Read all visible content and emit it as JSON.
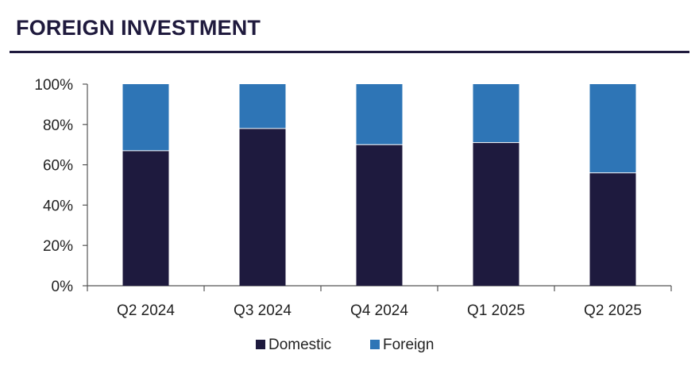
{
  "title": "FOREIGN INVESTMENT",
  "chart_data": {
    "type": "bar",
    "stacked": true,
    "categories": [
      "Q2 2024",
      "Q3 2024",
      "Q4 2024",
      "Q1 2025",
      "Q2 2025"
    ],
    "series": [
      {
        "name": "Domestic",
        "values": [
          67,
          78,
          70,
          71,
          56
        ],
        "color": "#1e1a3e"
      },
      {
        "name": "Foreign",
        "values": [
          33,
          22,
          30,
          29,
          44
        ],
        "color": "#2e75b6"
      }
    ],
    "ylim": [
      0,
      100
    ],
    "yticks": [
      "0%",
      "20%",
      "40%",
      "60%",
      "80%",
      "100%"
    ],
    "grid": false,
    "legend_position": "bottom-center"
  }
}
